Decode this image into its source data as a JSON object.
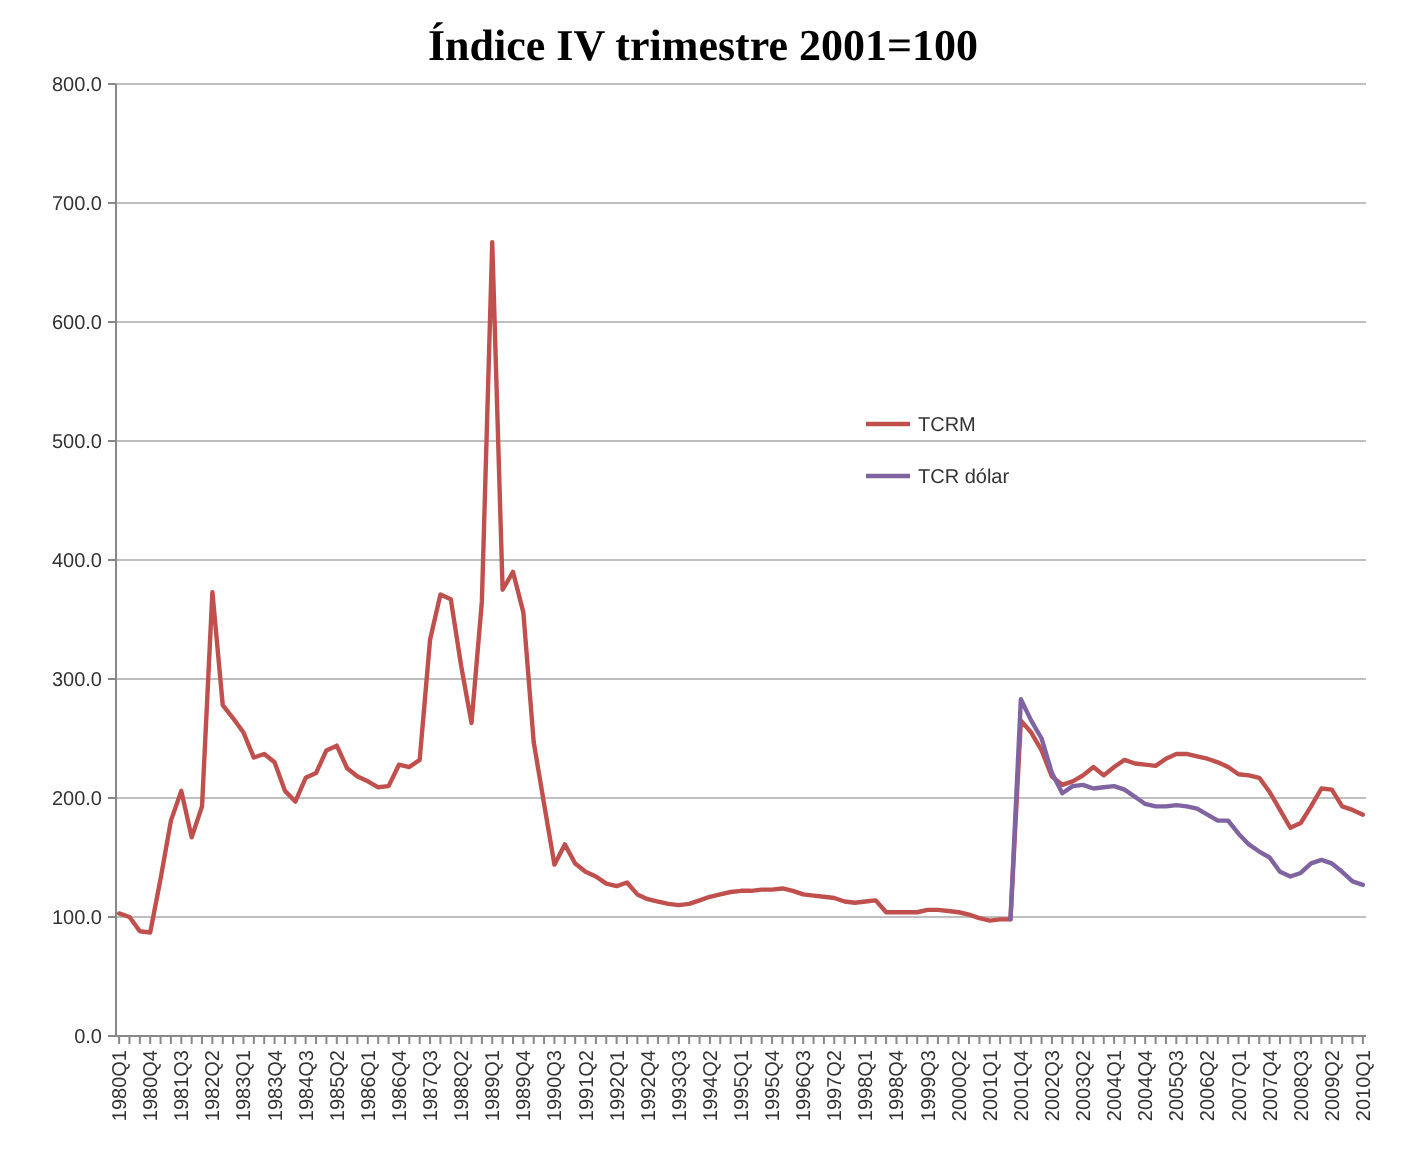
{
  "chart_data": {
    "type": "line",
    "title": "Índice IV trimestre 2001=100",
    "categories": [
      "1980Q1",
      null,
      null,
      "1980Q4",
      null,
      null,
      "1981Q3",
      null,
      null,
      "1982Q2",
      null,
      null,
      "1983Q1",
      null,
      null,
      "1983Q4",
      null,
      null,
      "1984Q3",
      null,
      null,
      "1985Q2",
      null,
      null,
      "1986Q1",
      null,
      null,
      "1986Q4",
      null,
      null,
      "1987Q3",
      null,
      null,
      "1988Q2",
      null,
      null,
      "1989Q1",
      null,
      null,
      "1989Q4",
      null,
      null,
      "1990Q3",
      null,
      null,
      "1991Q2",
      null,
      null,
      "1992Q1",
      null,
      null,
      "1992Q4",
      null,
      null,
      "1993Q3",
      null,
      null,
      "1994Q2",
      null,
      null,
      "1995Q1",
      null,
      null,
      "1995Q4",
      null,
      null,
      "1996Q3",
      null,
      null,
      "1997Q2",
      null,
      null,
      "1998Q1",
      null,
      null,
      "1998Q4",
      null,
      null,
      "1999Q3",
      null,
      null,
      "2000Q2",
      null,
      null,
      "2001Q1",
      null,
      null,
      "2001Q4",
      null,
      null,
      "2002Q3",
      null,
      null,
      "2003Q2",
      null,
      null,
      "2004Q1",
      null,
      null,
      "2004Q4",
      null,
      null,
      "2005Q3",
      null,
      null,
      "2006Q2",
      null,
      null,
      "2007Q1",
      null,
      null,
      "2007Q4",
      null,
      null,
      "2008Q3",
      null,
      null,
      "2009Q2",
      null,
      null,
      "2010Q1"
    ],
    "series": [
      {
        "name": "TCRM",
        "color": "#c0504d",
        "values": [
          103,
          100,
          88,
          87,
          132,
          181,
          206,
          167,
          193,
          373,
          278,
          267,
          255,
          234,
          237,
          230,
          206,
          197,
          217,
          221,
          240,
          244,
          225,
          218,
          214,
          209,
          210,
          228,
          226,
          232,
          333,
          371,
          367,
          311,
          263,
          365,
          667,
          375,
          390,
          356,
          247,
          195,
          144,
          161,
          145,
          138,
          134,
          128,
          126,
          129,
          119,
          115,
          113,
          111,
          110,
          111,
          114,
          117,
          119,
          121,
          122,
          122,
          123,
          123,
          124,
          122,
          119,
          118,
          117,
          116,
          113,
          112,
          113,
          114,
          104,
          104,
          104,
          104,
          106,
          106,
          105,
          104,
          102,
          99,
          97,
          98,
          98,
          265,
          255,
          240,
          218,
          211,
          214,
          219,
          226,
          219,
          226,
          232,
          229,
          228,
          227,
          233,
          237,
          237,
          235,
          233,
          230,
          226,
          220,
          219,
          217,
          205,
          190,
          175,
          179,
          193,
          208,
          207,
          193,
          190,
          186
        ]
      },
      {
        "name": "TCR dólar",
        "color": "#8064a2",
        "values": [
          null,
          null,
          null,
          null,
          null,
          null,
          null,
          null,
          null,
          null,
          null,
          null,
          null,
          null,
          null,
          null,
          null,
          null,
          null,
          null,
          null,
          null,
          null,
          null,
          null,
          null,
          null,
          null,
          null,
          null,
          null,
          null,
          null,
          null,
          null,
          null,
          null,
          null,
          null,
          null,
          null,
          null,
          null,
          null,
          null,
          null,
          null,
          null,
          null,
          null,
          null,
          null,
          null,
          null,
          null,
          null,
          null,
          null,
          null,
          null,
          null,
          null,
          null,
          null,
          null,
          null,
          null,
          null,
          null,
          null,
          null,
          null,
          null,
          null,
          null,
          null,
          null,
          null,
          null,
          null,
          null,
          null,
          null,
          null,
          null,
          null,
          98,
          283,
          265,
          250,
          221,
          204,
          210,
          211,
          208,
          209,
          210,
          207,
          201,
          195,
          193,
          193,
          194,
          193,
          191,
          186,
          181,
          181,
          170,
          161,
          155,
          150,
          138,
          134,
          137,
          145,
          148,
          145,
          138,
          130,
          127
        ]
      }
    ],
    "ylim": [
      0,
      800
    ],
    "yticks": [
      {
        "value": 0,
        "label": "0.0"
      },
      {
        "value": 100,
        "label": "100.0"
      },
      {
        "value": 200,
        "label": "200.0"
      },
      {
        "value": 300,
        "label": "300.0"
      },
      {
        "value": 400,
        "label": "400.0"
      },
      {
        "value": 500,
        "label": "500.0"
      },
      {
        "value": 600,
        "label": "600.0"
      },
      {
        "value": 700,
        "label": "700.0"
      },
      {
        "value": 800,
        "label": "800.0"
      }
    ],
    "grid": "y",
    "legend": "right",
    "marker": "none",
    "line_style": "solid"
  }
}
